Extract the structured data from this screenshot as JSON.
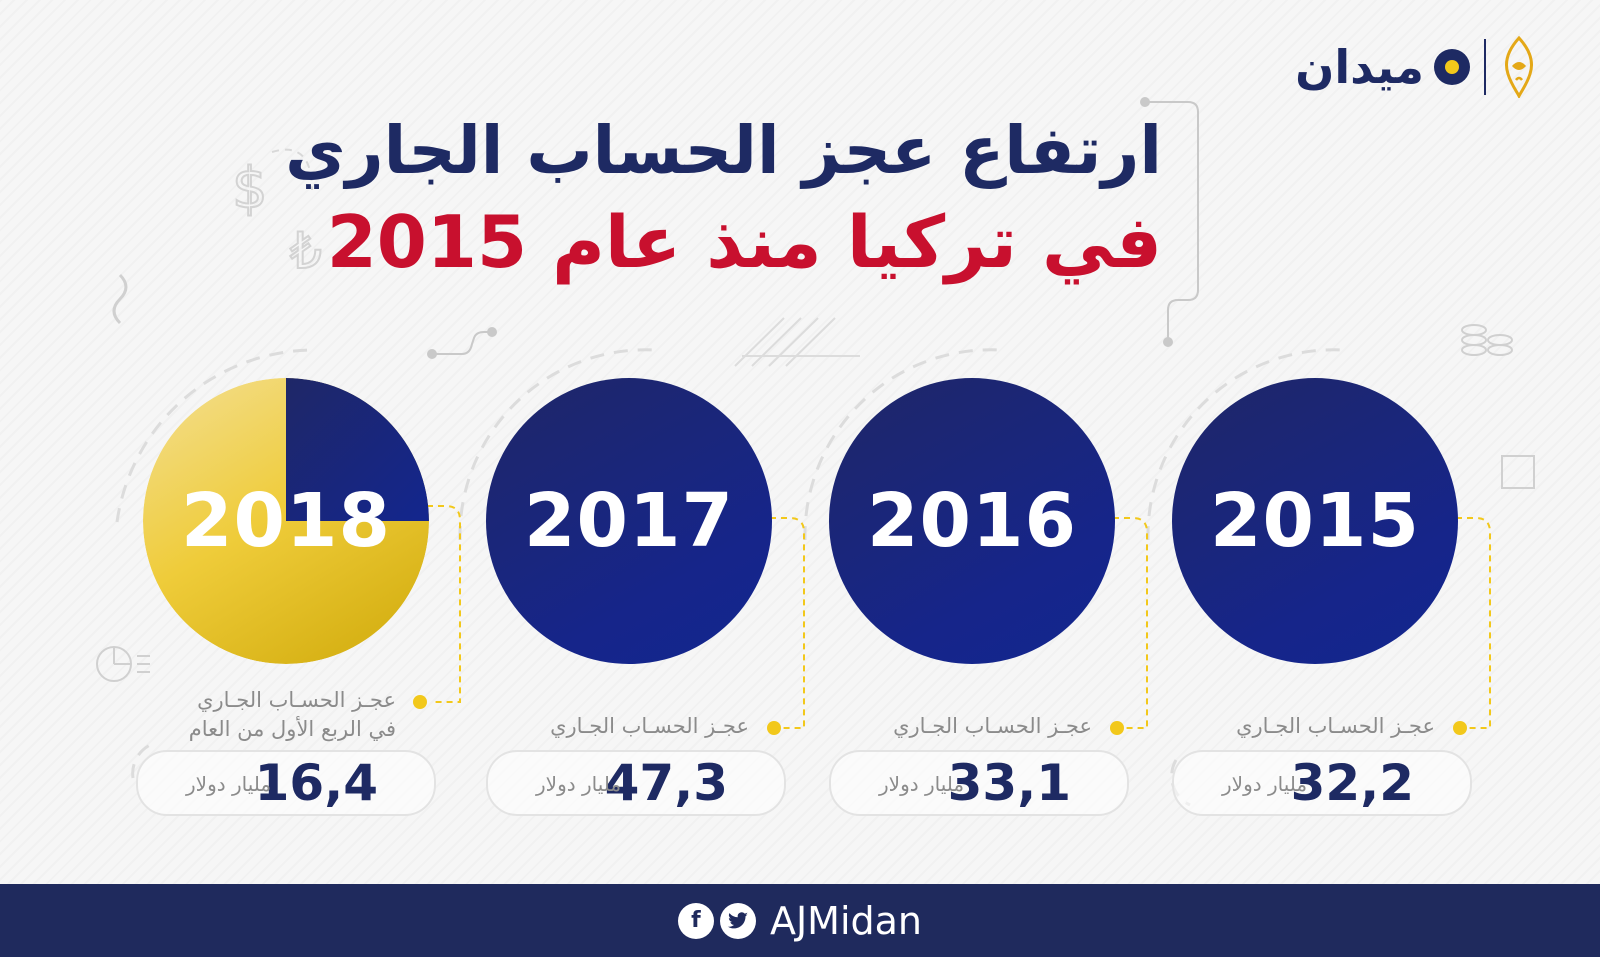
{
  "title": {
    "line1": "ارتفاع عجز الحساب الجاري",
    "line2": "في تركيا منذ عام 2015"
  },
  "logo": {
    "text": "ميدان"
  },
  "colors": {
    "navy": "#1e2a63",
    "gold": "#f2c81b",
    "red": "#c8102e",
    "gray_text": "#8b8b8b"
  },
  "items": [
    {
      "year": "2015",
      "label_line1": "عجـز الحسـاب الجـاري",
      "label_line2": "",
      "value": "32,2",
      "unit": "مليار دولار"
    },
    {
      "year": "2016",
      "label_line1": "عجـز الحسـاب الجـاري",
      "label_line2": "",
      "value": "33,1",
      "unit": "مليار دولار"
    },
    {
      "year": "2017",
      "label_line1": "عجـز الحسـاب الجـاري",
      "label_line2": "",
      "value": "47,3",
      "unit": "مليار دولار"
    },
    {
      "year": "2018",
      "label_line1": "عجـز الحسـاب الجـاري",
      "label_line2": "في الربع الأول من العام",
      "value": "16,4",
      "unit": "مليار دولار",
      "quarter_fraction": 0.25
    }
  ],
  "footer": {
    "handle": "AJMidan",
    "icons": [
      "twitter-icon",
      "facebook-icon"
    ]
  }
}
